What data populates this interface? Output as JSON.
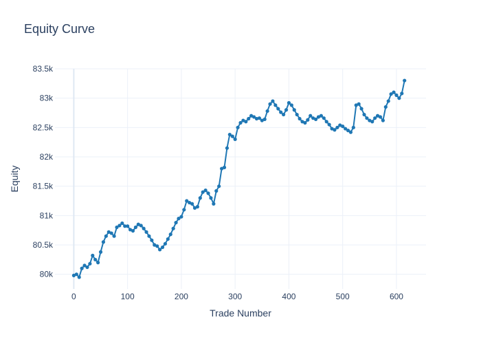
{
  "chart_data": {
    "type": "line",
    "title": "Equity Curve",
    "xlabel": "Trade Number",
    "ylabel": "Equity",
    "xlim": [
      -35,
      655
    ],
    "ylim": [
      79750,
      83500
    ],
    "x_ticks": [
      0,
      100,
      200,
      300,
      400,
      500,
      600
    ],
    "x_tick_labels": [
      "0",
      "100",
      "200",
      "300",
      "400",
      "500",
      "600"
    ],
    "y_ticks": [
      80000,
      80500,
      81000,
      81500,
      82000,
      82500,
      83000,
      83500
    ],
    "y_tick_labels": [
      "80k",
      "80.5k",
      "81k",
      "81.5k",
      "82k",
      "82.5k",
      "83k",
      "83.5k"
    ],
    "grid": true,
    "legend": "none",
    "series": [
      {
        "color": "#1f77b4",
        "mode": "lines+markers",
        "x": [
          0,
          5,
          10,
          15,
          20,
          25,
          30,
          35,
          40,
          45,
          50,
          55,
          60,
          65,
          70,
          75,
          80,
          85,
          90,
          95,
          100,
          105,
          110,
          115,
          120,
          125,
          130,
          135,
          140,
          145,
          150,
          155,
          160,
          165,
          170,
          175,
          180,
          185,
          190,
          195,
          200,
          205,
          210,
          215,
          220,
          225,
          230,
          235,
          240,
          245,
          250,
          255,
          260,
          265,
          270,
          275,
          280,
          285,
          290,
          295,
          300,
          305,
          310,
          315,
          320,
          325,
          330,
          335,
          340,
          345,
          350,
          355,
          360,
          365,
          370,
          375,
          380,
          385,
          390,
          395,
          400,
          405,
          410,
          415,
          420,
          425,
          430,
          435,
          440,
          445,
          450,
          455,
          460,
          465,
          470,
          475,
          480,
          485,
          490,
          495,
          500,
          505,
          510,
          515,
          520,
          525,
          530,
          535,
          540,
          545,
          550,
          555,
          560,
          565,
          570,
          575,
          580,
          585,
          590,
          595,
          600,
          605,
          610,
          615
        ],
        "y": [
          79980,
          80000,
          79950,
          80100,
          80150,
          80120,
          80180,
          80320,
          80250,
          80200,
          80380,
          80550,
          80650,
          80720,
          80700,
          80650,
          80800,
          80830,
          80870,
          80820,
          80820,
          80760,
          80740,
          80800,
          80850,
          80830,
          80780,
          80720,
          80650,
          80580,
          80500,
          80480,
          80420,
          80460,
          80520,
          80600,
          80680,
          80780,
          80880,
          80950,
          80980,
          81100,
          81250,
          81220,
          81200,
          81130,
          81150,
          81300,
          81400,
          81430,
          81380,
          81300,
          81200,
          81420,
          81500,
          81800,
          81820,
          82150,
          82380,
          82350,
          82300,
          82500,
          82580,
          82620,
          82600,
          82650,
          82700,
          82680,
          82650,
          82660,
          82620,
          82640,
          82780,
          82900,
          82950,
          82880,
          82820,
          82760,
          82720,
          82800,
          82920,
          82880,
          82800,
          82720,
          82650,
          82600,
          82580,
          82630,
          82700,
          82660,
          82640,
          82680,
          82700,
          82660,
          82600,
          82550,
          82480,
          82460,
          82500,
          82540,
          82520,
          82480,
          82450,
          82420,
          82500,
          82880,
          82900,
          82820,
          82720,
          82660,
          82620,
          82600,
          82660,
          82700,
          82680,
          82620,
          82850,
          82950,
          83070,
          83100,
          83050,
          83000,
          83080,
          83300
        ]
      }
    ]
  }
}
